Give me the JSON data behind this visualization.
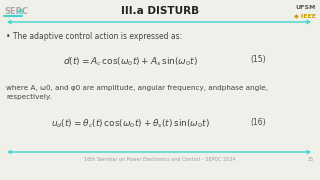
{
  "title": "III.a DISTURB",
  "bg_color": "#f0f0eb",
  "header_line_color": "#3dd6cc",
  "bullet_text": "The adaptive control action is expressed as:",
  "eq15_label": "(15)",
  "eq16_label": "(16)",
  "where_text": "where A, ω0, and φ0 are amplitude, angular frequency, andphase angle,\nrespectively.",
  "footer_text": "16th Seminar on Power Electronics and Control – SEPOC 2024",
  "footer_num": "15",
  "title_fontsize": 7.5,
  "body_fontsize": 5.5,
  "math_fontsize": 6.5,
  "footer_fontsize": 3.5,
  "title_color": "#222222",
  "body_color": "#444444",
  "accent_color": "#3dd6cc",
  "sep_color": "#aaaaaa",
  "ieee_color": "#c8a000"
}
